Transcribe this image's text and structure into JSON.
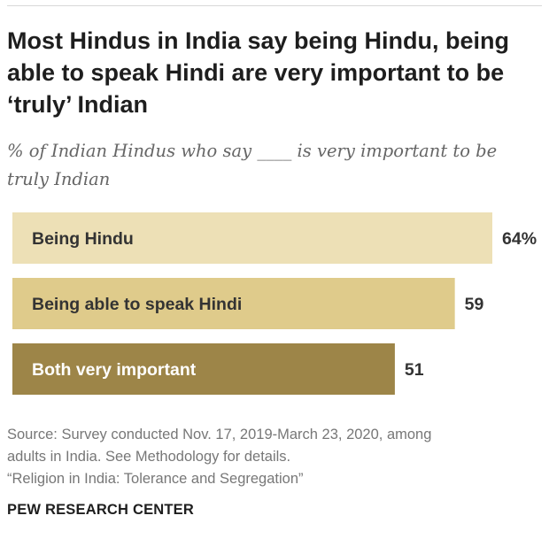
{
  "chart_data": {
    "type": "bar",
    "orientation": "horizontal",
    "title": "Most Hindus in India say being Hindu, being able to speak Hindi are very important to be ‘truly’ Indian",
    "subtitle": "% of Indian Hindus who say ____ is very important to be truly Indian",
    "categories": [
      "Being Hindu",
      "Being able to speak Hindi",
      "Both very important"
    ],
    "values": [
      64,
      59,
      51
    ],
    "value_labels": [
      "64%",
      "59",
      "51"
    ],
    "bar_colors": [
      "#ede0b6",
      "#dfcb8b",
      "#9d8548"
    ],
    "label_colors": [
      "#333333",
      "#333333",
      "#ffffff"
    ],
    "xlim": [
      0,
      100
    ],
    "xlabel": "",
    "ylabel": "",
    "grid": false
  },
  "source": {
    "line1": "Source: Survey conducted Nov. 17, 2019-March 23, 2020, among",
    "line2": "adults in India. See Methodology for details.",
    "line3": "“Religion in India: Tolerance and Segregation”"
  },
  "brand": "PEW RESEARCH CENTER"
}
